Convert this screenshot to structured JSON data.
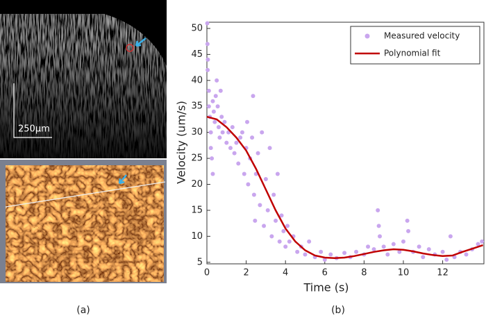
{
  "figure": {
    "scale_bar": "250µm",
    "panel_a_label": "(a)",
    "panel_b_label": "(b)"
  },
  "chart_data": {
    "type": "scatter",
    "x_label": "Time (s)",
    "y_label": "Velocity (um/s)",
    "xlim": [
      0,
      14.1
    ],
    "ylim": [
      4.7,
      51.2
    ],
    "xticks": [
      0,
      2,
      4,
      6,
      8,
      10,
      12
    ],
    "yticks": [
      5,
      10,
      15,
      20,
      25,
      30,
      35,
      40,
      45,
      50
    ],
    "legend": "northeast",
    "grid": false,
    "series": [
      {
        "name": "Measured velocity",
        "type": "scatter",
        "color": "#c9a6ee",
        "x": [
          0.02,
          0.03,
          0.05,
          0.04,
          0.1,
          0.1,
          0.15,
          0.2,
          0.2,
          0.25,
          0.3,
          0.3,
          0.35,
          0.4,
          0.45,
          0.5,
          0.55,
          0.6,
          0.65,
          0.7,
          0.75,
          0.8,
          0.9,
          1.0,
          1.1,
          1.2,
          1.3,
          1.4,
          1.5,
          1.6,
          1.7,
          1.8,
          1.9,
          2.0,
          2.05,
          2.1,
          2.2,
          2.3,
          2.35,
          2.4,
          2.45,
          2.5,
          2.6,
          2.7,
          2.8,
          2.9,
          3.0,
          3.1,
          3.2,
          3.3,
          3.4,
          3.5,
          3.6,
          3.7,
          3.8,
          3.9,
          4.0,
          4.1,
          4.2,
          4.4,
          4.6,
          4.8,
          5.0,
          5.2,
          5.5,
          5.8,
          6.0,
          6.3,
          6.6,
          7.0,
          7.3,
          7.6,
          8.0,
          8.2,
          8.5,
          8.7,
          8.75,
          8.8,
          9.0,
          9.2,
          9.5,
          9.8,
          10.0,
          10.2,
          10.25,
          10.5,
          10.8,
          11.0,
          11.3,
          11.6,
          12.0,
          12.2,
          12.4,
          12.6,
          12.9,
          13.2,
          13.5,
          13.8,
          14.0
        ],
        "values": [
          51,
          47,
          44,
          42,
          38,
          35,
          33,
          30,
          27,
          25,
          22,
          36,
          34,
          32,
          37,
          40,
          35,
          31,
          29,
          38,
          33,
          30,
          32,
          28,
          30,
          27,
          31,
          26,
          28,
          24,
          29,
          30,
          22,
          27,
          32,
          20,
          25,
          29,
          37,
          18,
          13,
          22,
          26,
          16,
          30,
          12,
          21,
          15,
          27,
          10,
          18,
          13,
          22,
          9,
          14,
          11,
          8,
          12,
          9,
          10,
          7,
          8,
          6.5,
          9,
          6,
          7,
          5.5,
          6.5,
          5.8,
          6.8,
          6,
          7,
          6.5,
          8,
          7.5,
          15,
          12,
          10,
          8,
          6.5,
          8.5,
          7,
          9,
          13,
          11,
          7,
          8,
          6,
          7.5,
          6.5,
          7,
          5.5,
          10,
          6,
          7,
          6.5,
          7.5,
          8.5,
          9
        ]
      },
      {
        "name": "Polynomial fit",
        "type": "line",
        "color": "#c00000",
        "x": [
          0,
          0.5,
          1,
          1.5,
          2,
          2.5,
          3,
          3.5,
          4,
          4.5,
          5,
          5.5,
          6,
          6.5,
          7,
          7.5,
          8,
          8.5,
          9,
          9.5,
          10,
          10.5,
          11,
          11.5,
          12,
          12.5,
          13,
          13.5,
          14.05
        ],
        "values": [
          33,
          32.5,
          31,
          29,
          26.5,
          23,
          19,
          15,
          11.5,
          9,
          7.3,
          6.3,
          5.9,
          5.8,
          5.9,
          6.2,
          6.6,
          7,
          7.3,
          7.5,
          7.4,
          7.1,
          6.7,
          6.4,
          6.2,
          6.3,
          7,
          7.6,
          8.3
        ]
      }
    ]
  }
}
